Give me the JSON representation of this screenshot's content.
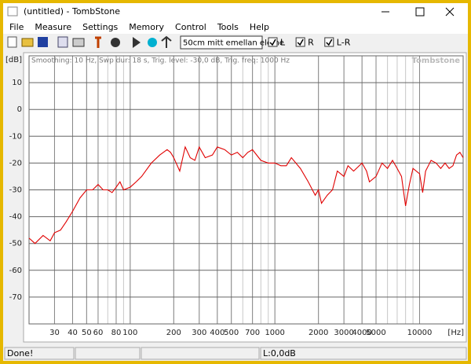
{
  "window": {
    "title": "(untitled) - TombStone"
  },
  "menu": [
    "File",
    "Measure",
    "Settings",
    "Memory",
    "Control",
    "Tools",
    "Help"
  ],
  "toolbar": {
    "input": "50cm mitt emellan eleme",
    "checkboxes": [
      "L",
      "R",
      "L-R"
    ]
  },
  "chart_data": {
    "type": "line",
    "subtitle": "Smoothing: 10 Hz, Swp dur: 18 s, Trig. level: -30,0 dB, Trig. freq: 1000 Hz",
    "watermark": "Tombstone",
    "xlabel": "[Hz]",
    "ylabel": "[dB]",
    "xscale": "log",
    "grid": true,
    "minor_grid": true,
    "xlim": [
      20,
      20000
    ],
    "ylim": [
      -80,
      20
    ],
    "xticks": [
      30,
      40,
      50,
      60,
      80,
      100,
      200,
      300,
      400,
      500,
      700,
      1000,
      2000,
      3000,
      4000,
      5000,
      10000
    ],
    "yticks": [
      10,
      0,
      -10,
      -20,
      -30,
      -40,
      -50,
      -60,
      -70
    ],
    "x": [
      20,
      22,
      25,
      28,
      30,
      33,
      36,
      40,
      45,
      50,
      55,
      60,
      65,
      70,
      75,
      80,
      85,
      90,
      100,
      110,
      120,
      140,
      160,
      180,
      190,
      200,
      220,
      240,
      260,
      280,
      300,
      330,
      370,
      400,
      450,
      500,
      550,
      600,
      650,
      700,
      800,
      900,
      1000,
      1100,
      1200,
      1300,
      1500,
      1700,
      1900,
      2000,
      2100,
      2300,
      2500,
      2700,
      3000,
      3200,
      3500,
      4000,
      4300,
      4500,
      5000,
      5500,
      6000,
      6500,
      7000,
      7500,
      8000,
      8500,
      9000,
      10000,
      10500,
      11000,
      12000,
      13000,
      14000,
      15000,
      16000,
      17000,
      18000,
      19000,
      20000
    ],
    "series": [
      {
        "color": "#e00000",
        "values": [
          -48,
          -50,
          -47,
          -49,
          -46,
          -45,
          -42,
          -38,
          -33,
          -30,
          -30,
          -28,
          -30,
          -30,
          -31,
          -29,
          -27,
          -30,
          -29,
          -27,
          -25,
          -20,
          -17,
          -15,
          -16,
          -18,
          -23,
          -14,
          -18,
          -19,
          -14,
          -18,
          -17,
          -14,
          -15,
          -17,
          -16,
          -18,
          -16,
          -15,
          -19,
          -20,
          -20,
          -21,
          -21,
          -18,
          -22,
          -27,
          -32,
          -30,
          -35,
          -32,
          -30,
          -23,
          -25,
          -21,
          -23,
          -20,
          -23,
          -27,
          -25,
          -20,
          -22,
          -19,
          -22,
          -25,
          -36,
          -28,
          -22,
          -24,
          -31,
          -23,
          -19,
          -20,
          -22,
          -20,
          -22,
          -21,
          -17,
          -16,
          -18
        ]
      }
    ]
  },
  "status_bar": [
    "Done!",
    "L:0,0dB"
  ]
}
